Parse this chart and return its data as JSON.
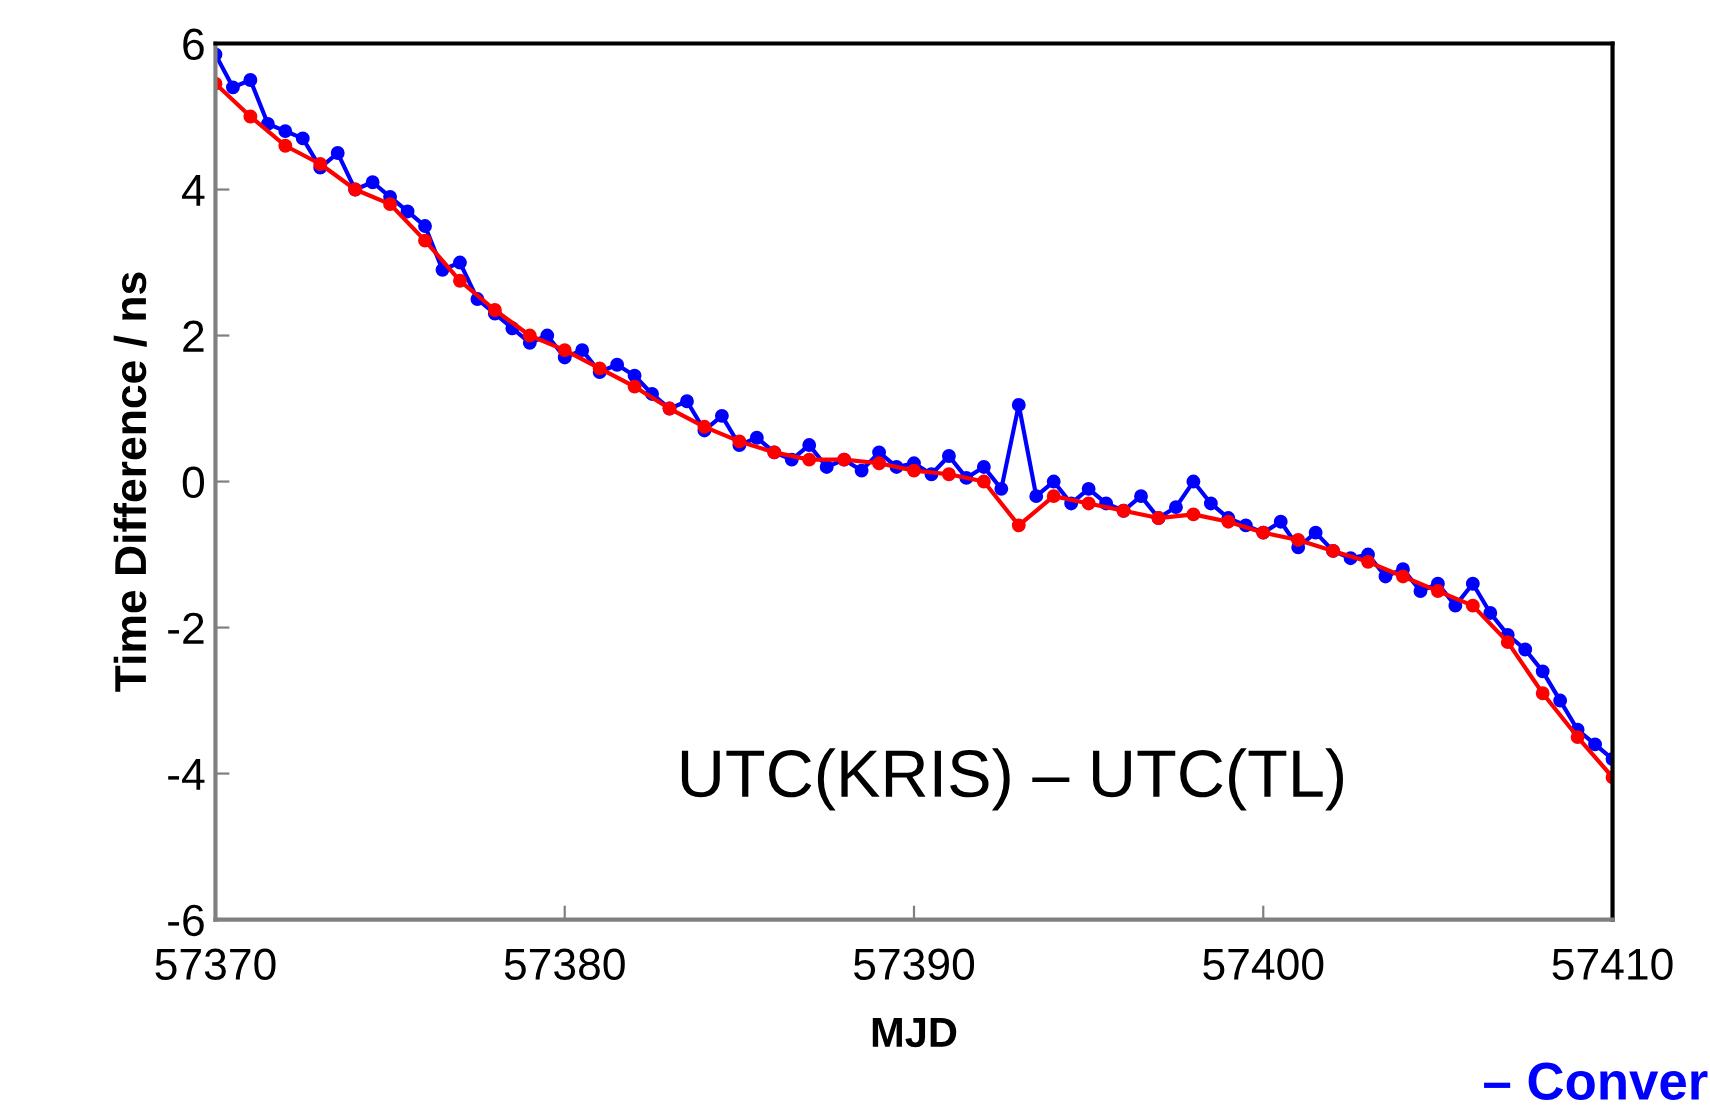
{
  "chart_data": {
    "type": "line",
    "xlabel": "MJD",
    "ylabel": "Time Difference / ns",
    "xlim": [
      57370,
      57410
    ],
    "xticks": [
      57370,
      57380,
      57390,
      57400,
      57410
    ],
    "ylim": [
      -6,
      6
    ],
    "yticks": [
      -6,
      -4,
      -2,
      0,
      2,
      4,
      6
    ],
    "grid": false,
    "marker": "circle",
    "line_style": "solid",
    "annotations": [
      "UTC(KRIS) – UTC(TL)",
      "– Conver"
    ],
    "series": [
      {
        "color": "#0000ff",
        "x": [
          57370,
          57370.5,
          57371,
          57371.5,
          57372,
          57372.5,
          57373,
          57373.5,
          57374,
          57374.5,
          57375,
          57375.5,
          57376,
          57376.5,
          57377,
          57377.5,
          57378,
          57378.5,
          57379,
          57379.5,
          57380,
          57380.5,
          57381,
          57381.5,
          57382,
          57382.5,
          57383,
          57383.5,
          57384,
          57384.5,
          57385,
          57385.5,
          57386,
          57386.5,
          57387,
          57387.5,
          57388,
          57388.5,
          57389,
          57389.5,
          57390,
          57390.5,
          57391,
          57391.5,
          57392,
          57392.5,
          57393,
          57393.5,
          57394,
          57394.5,
          57395,
          57395.5,
          57396,
          57396.5,
          57397,
          57397.5,
          57398,
          57398.5,
          57399,
          57399.5,
          57400,
          57400.5,
          57401,
          57401.5,
          57402,
          57402.5,
          57403,
          57403.5,
          57404,
          57404.5,
          57405,
          57405.5,
          57406,
          57406.5,
          57407,
          57407.5,
          57408,
          57408.5,
          57409,
          57409.5,
          57410
        ],
        "values": [
          5.85,
          5.4,
          5.5,
          4.9,
          4.8,
          4.7,
          4.3,
          4.5,
          4.0,
          4.1,
          3.9,
          3.7,
          3.5,
          2.9,
          3.0,
          2.5,
          2.3,
          2.1,
          1.9,
          2.0,
          1.7,
          1.8,
          1.5,
          1.6,
          1.45,
          1.2,
          1.0,
          1.1,
          0.7,
          0.9,
          0.5,
          0.6,
          0.4,
          0.3,
          0.5,
          0.2,
          0.3,
          0.15,
          0.4,
          0.2,
          0.25,
          0.1,
          0.35,
          0.05,
          0.2,
          -0.1,
          1.05,
          -0.2,
          0.0,
          -0.3,
          -0.1,
          -0.3,
          -0.4,
          -0.2,
          -0.5,
          -0.35,
          0.0,
          -0.3,
          -0.5,
          -0.6,
          -0.7,
          -0.55,
          -0.9,
          -0.7,
          -0.95,
          -1.05,
          -1.0,
          -1.3,
          -1.2,
          -1.5,
          -1.4,
          -1.7,
          -1.4,
          -1.8,
          -2.1,
          -2.3,
          -2.6,
          -3.0,
          -3.4,
          -3.6,
          -3.8
        ]
      },
      {
        "color": "#ff0000",
        "x": [
          57370,
          57371,
          57372,
          57373,
          57374,
          57375,
          57376,
          57377,
          57378,
          57379,
          57380,
          57381,
          57382,
          57383,
          57384,
          57385,
          57386,
          57387,
          57388,
          57389,
          57390,
          57391,
          57392,
          57393,
          57394,
          57395,
          57396,
          57397,
          57398,
          57399,
          57400,
          57401,
          57402,
          57403,
          57404,
          57405,
          57406,
          57407,
          57408,
          57409,
          57410
        ],
        "values": [
          5.45,
          5.0,
          4.6,
          4.35,
          4.0,
          3.8,
          3.3,
          2.75,
          2.35,
          2.0,
          1.8,
          1.55,
          1.3,
          1.0,
          0.75,
          0.55,
          0.4,
          0.3,
          0.3,
          0.25,
          0.15,
          0.1,
          0.0,
          -0.6,
          -0.2,
          -0.3,
          -0.4,
          -0.5,
          -0.45,
          -0.55,
          -0.7,
          -0.8,
          -0.95,
          -1.1,
          -1.3,
          -1.5,
          -1.7,
          -2.2,
          -2.9,
          -3.5,
          -4.05
        ]
      }
    ]
  }
}
